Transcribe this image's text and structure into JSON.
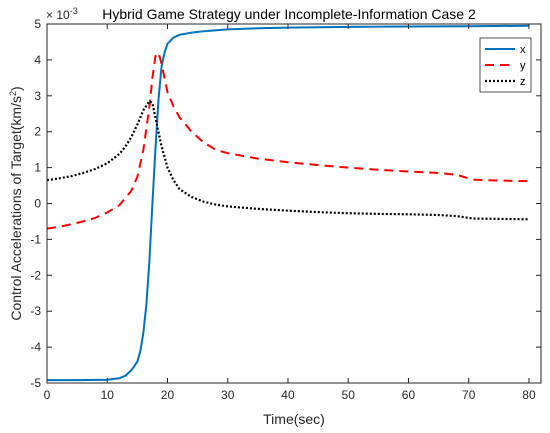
{
  "chart_data": {
    "type": "line",
    "title": "Hybrid Game Strategy under Incomplete-Information Case 2",
    "xlabel": "Time(sec)",
    "ylabel": "Control Accelerations of Target(km/s",
    "ylabel_sup": "2",
    "ylabel_close": ")",
    "y_multiplier": "× 10",
    "y_multiplier_exp": "-3",
    "xlim": [
      0,
      82
    ],
    "ylim": [
      -5,
      5
    ],
    "xticks": [
      0,
      10,
      20,
      30,
      40,
      50,
      60,
      70,
      80
    ],
    "yticks": [
      -5,
      -4,
      -3,
      -2,
      -1,
      0,
      1,
      2,
      3,
      4,
      5
    ],
    "grid": false,
    "legend_position": "top-right",
    "series": [
      {
        "name": "x",
        "color": "#0072BD",
        "dash": "solid",
        "x": [
          0,
          5,
          10,
          12,
          13,
          14,
          15,
          15.5,
          16,
          16.5,
          17,
          17.5,
          18,
          18.5,
          19,
          19.5,
          20,
          21,
          22,
          24,
          26,
          30,
          35,
          40,
          50,
          60,
          70,
          80
        ],
        "y": [
          -4.92,
          -4.92,
          -4.91,
          -4.87,
          -4.8,
          -4.65,
          -4.4,
          -4.1,
          -3.6,
          -2.8,
          -1.6,
          0.0,
          1.5,
          2.9,
          3.8,
          4.2,
          4.45,
          4.62,
          4.7,
          4.76,
          4.8,
          4.85,
          4.88,
          4.9,
          4.92,
          4.93,
          4.94,
          4.95
        ]
      },
      {
        "name": "y",
        "color": "#FF0000",
        "dash": "dashed",
        "x": [
          0,
          2,
          4,
          6,
          8,
          10,
          12,
          14,
          15,
          16,
          17,
          17.5,
          18,
          18.5,
          19,
          19.5,
          20,
          21,
          22,
          24,
          26,
          28,
          30,
          35,
          40,
          45,
          50,
          55,
          60,
          65,
          68,
          70,
          71,
          75,
          80
        ],
        "y": [
          -0.7,
          -0.65,
          -0.58,
          -0.5,
          -0.4,
          -0.25,
          -0.05,
          0.35,
          0.75,
          1.5,
          2.7,
          3.5,
          4.1,
          4.2,
          3.9,
          3.5,
          3.1,
          2.7,
          2.4,
          2.0,
          1.7,
          1.5,
          1.4,
          1.25,
          1.15,
          1.07,
          1.0,
          0.94,
          0.89,
          0.85,
          0.8,
          0.7,
          0.66,
          0.64,
          0.62
        ]
      },
      {
        "name": "z",
        "color": "#000000",
        "dash": "dotted",
        "x": [
          0,
          2,
          4,
          6,
          8,
          10,
          12,
          13,
          14,
          15,
          16,
          17,
          17.5,
          18,
          19,
          20,
          21,
          22,
          24,
          26,
          28,
          30,
          35,
          40,
          45,
          50,
          55,
          60,
          65,
          68,
          70,
          71,
          75,
          80
        ],
        "y": [
          0.65,
          0.7,
          0.76,
          0.85,
          0.96,
          1.12,
          1.38,
          1.58,
          1.85,
          2.2,
          2.6,
          2.85,
          2.8,
          2.4,
          1.6,
          1.0,
          0.65,
          0.4,
          0.18,
          0.05,
          -0.03,
          -0.08,
          -0.15,
          -0.2,
          -0.24,
          -0.27,
          -0.29,
          -0.3,
          -0.32,
          -0.35,
          -0.4,
          -0.42,
          -0.43,
          -0.44
        ]
      }
    ]
  }
}
